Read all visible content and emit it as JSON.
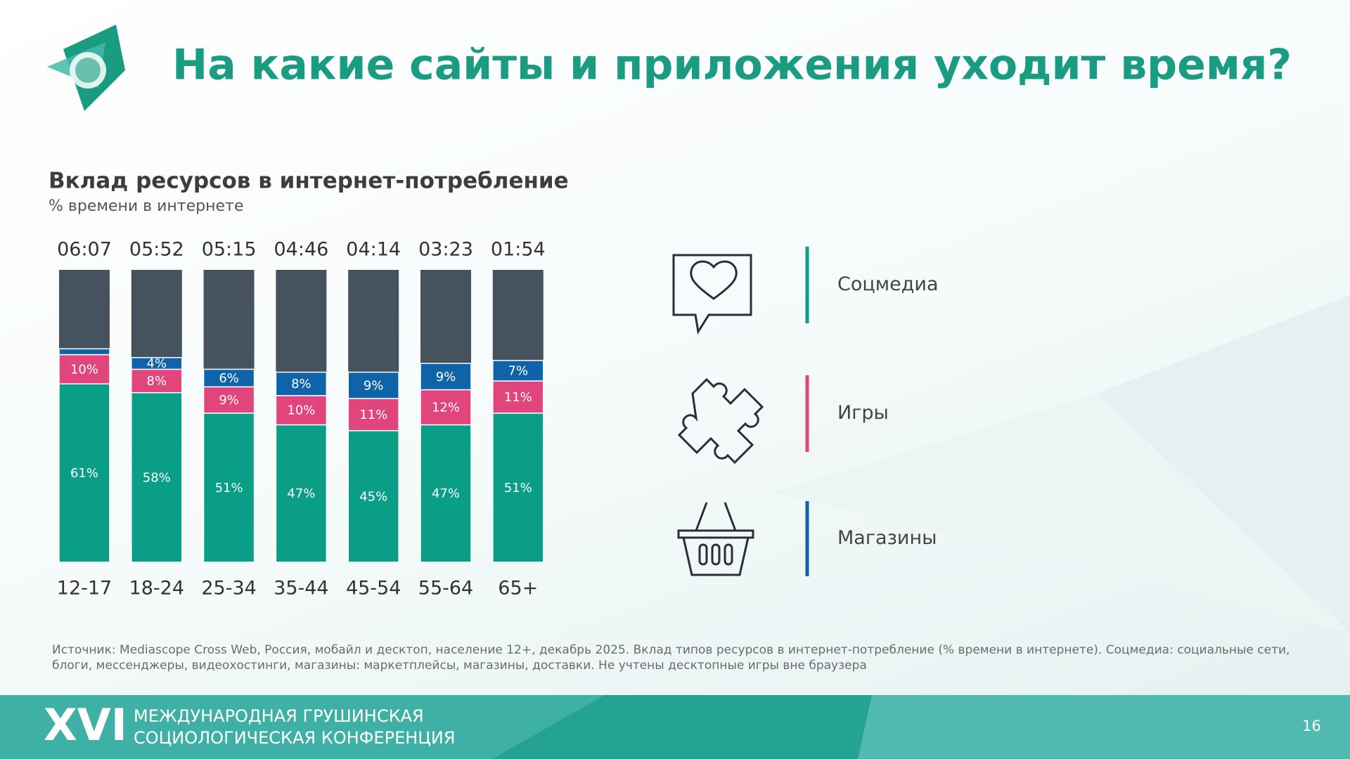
{
  "header": {
    "title": "На какие сайты и приложения уходит время?"
  },
  "chart_data": {
    "type": "stacked_bar",
    "title": "Вклад ресурсов в интернет-потребление",
    "subtitle": "% времени в интернете",
    "categories": [
      "12-17",
      "18-24",
      "25-34",
      "35-44",
      "45-54",
      "55-64",
      "65+"
    ],
    "bar_top_labels": [
      "06:07",
      "05:52",
      "05:15",
      "04:46",
      "04:14",
      "03:23",
      "01:54"
    ],
    "series": [
      {
        "name": "Соцмедиа",
        "color": "#0a9e87",
        "values": [
          61,
          58,
          51,
          47,
          45,
          47,
          51
        ],
        "value_labels": [
          "61%",
          "58%",
          "51%",
          "47%",
          "45%",
          "47%",
          "51%"
        ]
      },
      {
        "name": "Игры",
        "color": "#e0457b",
        "values": [
          10,
          8,
          9,
          10,
          11,
          12,
          11
        ],
        "value_labels": [
          "10%",
          "8%",
          "9%",
          "10%",
          "11%",
          "12%",
          "11%"
        ]
      },
      {
        "name": "Магазины",
        "color": "#0f63a8",
        "values": [
          2,
          4,
          6,
          8,
          9,
          9,
          7
        ],
        "value_labels": [
          null,
          "4%",
          "6%",
          "8%",
          "9%",
          "9%",
          "7%"
        ]
      }
    ],
    "rest_color": "#46525e",
    "ylim": [
      0,
      100
    ]
  },
  "note": "Источник: Mediascope Cross Web, Россия, мобайл и десктоп, население 12+, декабрь 2025. Вклад типов ресурсов в интернет-потребление (% времени в интернете). Соцмедиа: социальные сети, блоги, мессенджеры, видеохостинги, магазины: маркетплейсы, магазины, доставки. Не учтены десктопные игры вне браузера",
  "footer": {
    "numeral": "XVI",
    "line1": "Международная Грушинская",
    "line2": "Социологическая конференция",
    "page": "16"
  }
}
